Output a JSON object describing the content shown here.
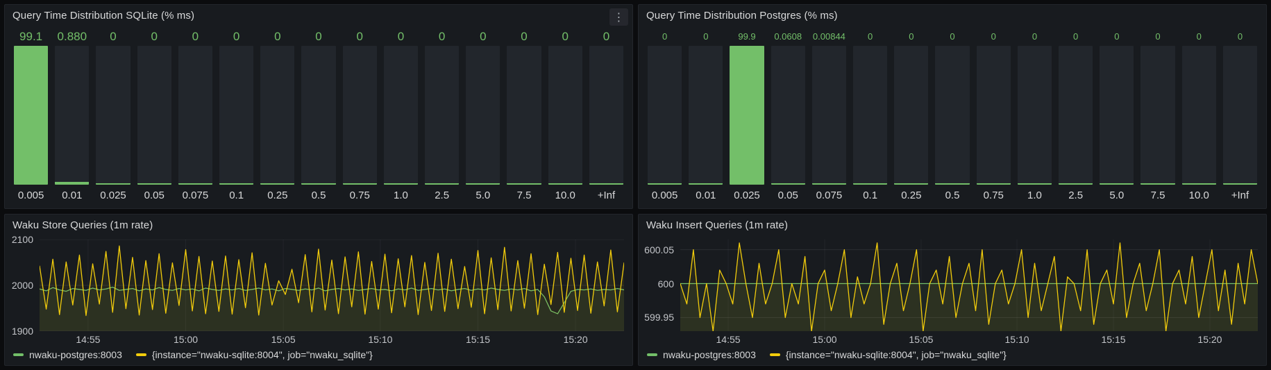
{
  "colors": {
    "green": "#73bf69",
    "yellow": "#f2cc0c",
    "panel_bg": "#181b1f",
    "bar_track": "#22262c"
  },
  "icons": {
    "panel_menu": "⋮"
  },
  "panels": {
    "sqlite_hist": {
      "title": "Query Time Distribution SQLite (% ms)",
      "chart_data": {
        "type": "bar",
        "max": 100,
        "categories": [
          "0.005",
          "0.01",
          "0.025",
          "0.05",
          "0.075",
          "0.1",
          "0.25",
          "0.5",
          "0.75",
          "1.0",
          "2.5",
          "5.0",
          "7.5",
          "10.0",
          "+Inf"
        ],
        "values": [
          99.1,
          0.88,
          0,
          0,
          0,
          0,
          0,
          0,
          0,
          0,
          0,
          0,
          0,
          0,
          0
        ],
        "value_labels": [
          "99.1",
          "0.880",
          "0",
          "0",
          "0",
          "0",
          "0",
          "0",
          "0",
          "0",
          "0",
          "0",
          "0",
          "0",
          "0"
        ]
      }
    },
    "postgres_hist": {
      "title": "Query Time Distribution Postgres (% ms)",
      "chart_data": {
        "type": "bar",
        "max": 100,
        "categories": [
          "0.005",
          "0.01",
          "0.025",
          "0.05",
          "0.075",
          "0.1",
          "0.25",
          "0.5",
          "0.75",
          "1.0",
          "2.5",
          "5.0",
          "7.5",
          "10.0",
          "+Inf"
        ],
        "values": [
          0,
          0,
          99.9,
          0.0608,
          0.00844,
          0,
          0,
          0,
          0,
          0,
          0,
          0,
          0,
          0,
          0
        ],
        "value_labels": [
          "0",
          "0",
          "99.9",
          "0.0608",
          "0.00844",
          "0",
          "0",
          "0",
          "0",
          "0",
          "0",
          "0",
          "0",
          "0",
          "0"
        ]
      }
    },
    "store_queries": {
      "title": "Waku Store Queries (1m rate)",
      "chart_data": {
        "type": "line",
        "ylim": [
          1900,
          2100
        ],
        "yticks": [
          {
            "label": "2100",
            "value": 2100
          },
          {
            "label": "2000",
            "value": 2000
          },
          {
            "label": "1900",
            "value": 1900
          }
        ],
        "xticks": [
          {
            "label": "14:55",
            "pos": 8.3
          },
          {
            "label": "15:00",
            "pos": 25
          },
          {
            "label": "15:05",
            "pos": 41.7
          },
          {
            "label": "15:10",
            "pos": 58.3
          },
          {
            "label": "15:15",
            "pos": 75
          },
          {
            "label": "15:20",
            "pos": 91.7
          }
        ],
        "series": [
          {
            "name": "nwaku-postgres:8003",
            "color": "green",
            "values": [
              1992,
              1988,
              1995,
              1990,
              1987,
              1993,
              1991,
              1989,
              1994,
              1990,
              1992,
              1996,
              1989,
              1991,
              1993,
              1988,
              1992,
              1990,
              1995,
              1991,
              1989,
              1993,
              1990,
              1992,
              1988,
              1994,
              1991,
              1989,
              1992,
              1990,
              1993,
              1989,
              1991,
              1994,
              1990,
              1992,
              1988,
              1993,
              1991,
              1989,
              1992,
              1990,
              1994,
              1988,
              1991,
              1993,
              1990,
              1992,
              1989,
              1991,
              1993,
              1990,
              1991,
              1988,
              1992,
              1990,
              1994,
              1989,
              1991,
              1993,
              1990,
              1992,
              1988,
              1991,
              1993,
              1989,
              1992,
              1990,
              1994,
              1991,
              1989,
              1992,
              1990,
              1993,
              1988,
              1991,
              1975,
              1944,
              1938,
              1962,
              1987,
              1991,
              1990,
              1992,
              1989,
              1991,
              1990,
              1993,
              1990
            ]
          },
          {
            "name": "{instance=\"nwaku-sqlite:8004\", job=\"nwaku_sqlite\"}",
            "color": "yellow",
            "values": [
              2042,
              1948,
              2057,
              1936,
              2051,
              1957,
              2066,
              1934,
              2047,
              1959,
              2074,
              1941,
              2086,
              1949,
              2061,
              1935,
              2054,
              1947,
              2069,
              1939,
              2049,
              1956,
              2078,
              1944,
              2063,
              1938,
              2053,
              1943,
              2064,
              1937,
              2056,
              1951,
              2071,
              1935,
              2048,
              1957,
              2010,
              1980,
              2035,
              1962,
              2067,
              1942,
              2079,
              1946,
              2055,
              1938,
              2062,
              1953,
              2073,
              1937,
              2052,
              1948,
              2068,
              1940,
              2058,
              1953,
              2065,
              1936,
              2050,
              1945,
              2070,
              1943,
              2057,
              1949,
              2041,
              1952,
              2076,
              1938,
              2060,
              1947,
              2083,
              1944,
              2054,
              1950,
              2069,
              1936,
              2046,
              1958,
              2072,
              1941,
              2059,
              1945,
              2066,
              1939,
              2051,
              1955,
              2077,
              1942,
              2049
            ]
          }
        ]
      }
    },
    "insert_queries": {
      "title": "Waku Insert Queries (1m rate)",
      "chart_data": {
        "type": "line",
        "ylim": [
          599.93,
          600.065
        ],
        "yticks": [
          {
            "label": "600.05",
            "value": 600.05
          },
          {
            "label": "600",
            "value": 600
          },
          {
            "label": "599.95",
            "value": 599.95
          }
        ],
        "xticks": [
          {
            "label": "14:55",
            "pos": 8.3
          },
          {
            "label": "15:00",
            "pos": 25
          },
          {
            "label": "15:05",
            "pos": 41.7
          },
          {
            "label": "15:10",
            "pos": 58.3
          },
          {
            "label": "15:15",
            "pos": 75
          },
          {
            "label": "15:20",
            "pos": 91.7
          }
        ],
        "series": [
          {
            "name": "nwaku-postgres:8003",
            "color": "green",
            "values": [
              600,
              600,
              600,
              600,
              600,
              600,
              600,
              600,
              600,
              600,
              600,
              600,
              600,
              600,
              600,
              600,
              600,
              600,
              600,
              600,
              600,
              600,
              600,
              600,
              600,
              600,
              600,
              600,
              600,
              600,
              600,
              600,
              600,
              600,
              600,
              600,
              600,
              600,
              600,
              600,
              600,
              600,
              600,
              600,
              600,
              600,
              600,
              600,
              600,
              600,
              600,
              600,
              600,
              600,
              600,
              600,
              600,
              600,
              600,
              600,
              600,
              600,
              600,
              600,
              600,
              600,
              600,
              600,
              600,
              600,
              600,
              600,
              600,
              600,
              600,
              600,
              600,
              600,
              600,
              600,
              600,
              600,
              600,
              600,
              600,
              600,
              600,
              600,
              600
            ]
          },
          {
            "name": "{instance=\"nwaku-sqlite:8004\", job=\"nwaku_sqlite\"}",
            "color": "yellow",
            "values": [
              600,
              599.97,
              600.05,
              599.95,
              600,
              599.93,
              600.02,
              600,
              599.97,
              600.06,
              600,
              599.95,
              600.03,
              599.97,
              600,
              600.05,
              599.95,
              600,
              599.97,
              600.04,
              599.93,
              600,
              600.02,
              599.96,
              600,
              600.05,
              599.95,
              600.01,
              599.97,
              600,
              600.06,
              599.94,
              600,
              600.03,
              599.96,
              600,
              600.05,
              599.93,
              600,
              600.02,
              599.97,
              600.04,
              599.95,
              600,
              600.03,
              599.96,
              600.05,
              599.94,
              600,
              600.02,
              599.97,
              600,
              600.05,
              599.95,
              600.03,
              599.96,
              600,
              600.04,
              599.93,
              600.01,
              600,
              599.96,
              600.05,
              599.94,
              600,
              600.02,
              599.97,
              600.06,
              599.95,
              600,
              600.03,
              599.96,
              600,
              600.05,
              599.93,
              600,
              600.02,
              599.97,
              600.04,
              599.95,
              600,
              600.05,
              599.96,
              600.02,
              599.94,
              600.03,
              599.97,
              600.05,
              600
            ]
          }
        ]
      }
    }
  }
}
